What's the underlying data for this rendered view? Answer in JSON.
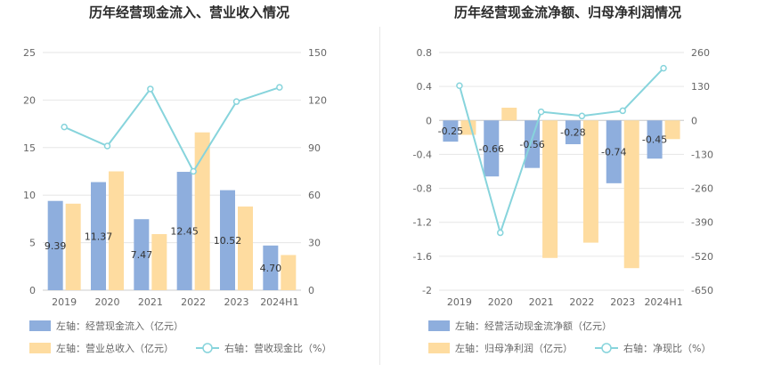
{
  "titles": {
    "left": "历年经营现金流入、营业收入情况",
    "right": "历年经营现金流净额、归母净利润情况"
  },
  "colors": {
    "bar_blue": "#8eaedd",
    "bar_yellow": "#fedca0",
    "line_cyan": "#87d4dc",
    "grid": "#e6e6e6",
    "axis": "#cccccc"
  },
  "chart_data": [
    {
      "type": "bar",
      "title": "历年经营现金流入、营业收入情况",
      "categories": [
        "2019",
        "2020",
        "2021",
        "2022",
        "2023",
        "2024H1"
      ],
      "left_axis": {
        "ylim": [
          0,
          25
        ],
        "ticks": [
          "0",
          "5",
          "10",
          "15",
          "20",
          "25"
        ]
      },
      "right_axis": {
        "ylim": [
          0,
          150
        ],
        "ticks": [
          "0",
          "30",
          "60",
          "90",
          "120",
          "150"
        ]
      },
      "series": [
        {
          "name": "左轴：经营现金流入（亿元）",
          "type": "bar",
          "axis": "left",
          "color": "#8eaedd",
          "values": [
            9.39,
            11.37,
            7.47,
            12.45,
            10.52,
            4.7
          ],
          "labels": [
            "9.39",
            "11.37",
            "7.47",
            "12.45",
            "10.52",
            "4.70"
          ]
        },
        {
          "name": "左轴：营业总收入（亿元）",
          "type": "bar",
          "axis": "left",
          "color": "#fedca0",
          "values": [
            9.1,
            12.5,
            5.9,
            16.6,
            8.8,
            3.7
          ]
        },
        {
          "name": "右轴：营收现金比（%）",
          "type": "line",
          "axis": "right",
          "color": "#87d4dc",
          "values": [
            103,
            91,
            127,
            75,
            119,
            128
          ]
        }
      ],
      "legend_position": "bottom",
      "grid": true
    },
    {
      "type": "bar",
      "title": "历年经营现金流净额、归母净利润情况",
      "categories": [
        "2019",
        "2020",
        "2021",
        "2022",
        "2023",
        "2024H1"
      ],
      "left_axis": {
        "ylim": [
          -2,
          0.8
        ],
        "ticks": [
          "-2",
          "-1.6",
          "-1.2",
          "-0.8",
          "-0.4",
          "0",
          "0.4",
          "0.8"
        ]
      },
      "right_axis": {
        "ylim": [
          -650,
          260
        ],
        "ticks": [
          "-650",
          "-520",
          "-390",
          "-260",
          "-130",
          "0",
          "130",
          "260"
        ]
      },
      "series": [
        {
          "name": "左轴：经营活动现金流净额（亿元）",
          "type": "bar",
          "axis": "left",
          "color": "#8eaedd",
          "values": [
            -0.25,
            -0.66,
            -0.56,
            -0.28,
            -0.74,
            -0.45
          ],
          "labels": [
            "-0.25",
            "-0.66",
            "-0.56",
            "-0.28",
            "-0.74",
            "-0.45"
          ]
        },
        {
          "name": "左轴：归母净利润（亿元）",
          "type": "bar",
          "axis": "left",
          "color": "#fedca0",
          "values": [
            -0.17,
            0.15,
            -1.62,
            -1.44,
            -1.74,
            -0.22
          ]
        },
        {
          "name": "右轴：净现比（%）",
          "type": "line",
          "axis": "right",
          "color": "#87d4dc",
          "values": [
            133,
            -430,
            33,
            17,
            37,
            200
          ]
        }
      ],
      "legend_position": "bottom",
      "grid": true
    }
  ]
}
